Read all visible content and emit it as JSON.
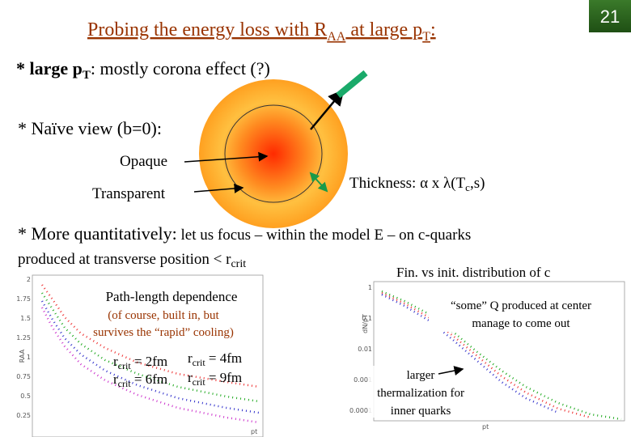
{
  "header": {
    "title": {
      "pre": "Probing the energy loss with R",
      "sub1": "AA",
      "mid": " at large p",
      "sub2": "T",
      "post": ":"
    },
    "page_number": "21"
  },
  "bullets": {
    "corona": {
      "pre": "* large p",
      "sub": "T",
      "post": ": mostly corona effect (?)"
    },
    "naive": "* Naïve view (b=0):",
    "quant": {
      "lead": "* More quantitatively:",
      "rest": " let us focus – within the model E – on c-quarks"
    },
    "produced": {
      "pre": "produced at transverse position < r",
      "sub": "crit"
    }
  },
  "diagram": {
    "opaque": "Opaque",
    "transparent": "Transparent",
    "thickness": {
      "pre": "Thickness: α x λ(T",
      "sub": "c",
      "post": ",s)"
    }
  },
  "left_plot": {
    "box_title": "Path-length dependence",
    "note_1": "(of course, built in, but",
    "note_2": "survives the “rapid” cooling)",
    "y_label": "RAA",
    "x_label": "pt",
    "y_ticks": [
      "2",
      "1.75",
      "1.5",
      "1.25",
      "1",
      "0.75",
      "0.5",
      "0.25"
    ],
    "rcrit": [
      {
        "pre": "r",
        "sub": "crit",
        "post": " = 2fm"
      },
      {
        "pre": "r",
        "sub": "crit",
        "post": " = 4fm"
      },
      {
        "pre": "r",
        "sub": "crit",
        "post": " = 6fm"
      },
      {
        "pre": "r",
        "sub": "crit",
        "post": " = 9fm"
      }
    ]
  },
  "right_plot": {
    "caption": "Fin. vs init. distribution of c",
    "note_1": "“some” Q produced at center",
    "note_2": "manage to come out",
    "note_3": "larger",
    "note_4": "thermalization for",
    "note_5": "inner quarks",
    "y_label": "dN/pT",
    "x_label": "pt",
    "y_ticks": [
      "1",
      "0.1",
      "0.01",
      "0.001",
      "0.0001"
    ]
  }
}
